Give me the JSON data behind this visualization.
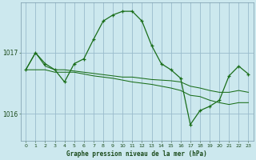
{
  "title": "Graphe pression niveau de la mer (hPa)",
  "bg_color": "#cce8ee",
  "grid_color": "#99bbcc",
  "line_color": "#1a6e1a",
  "marker_color": "#1a6e1a",
  "label_color": "#1a4a1a",
  "ylabel_ticks": [
    1016,
    1017
  ],
  "x_ticks": [
    0,
    1,
    2,
    3,
    4,
    5,
    6,
    7,
    8,
    9,
    10,
    11,
    12,
    13,
    14,
    15,
    16,
    17,
    18,
    19,
    20,
    21,
    22,
    23
  ],
  "xlim": [
    -0.5,
    23.5
  ],
  "ylim": [
    1015.55,
    1017.82
  ],
  "series_main": [
    1016.72,
    1017.0,
    1016.82,
    1016.72,
    1016.52,
    1016.82,
    1016.9,
    1017.22,
    1017.52,
    1017.62,
    1017.68,
    1017.68,
    1017.52,
    1017.12,
    1016.82,
    1016.72,
    1016.58,
    1015.82,
    1016.05,
    1016.12,
    1016.22,
    1016.62,
    1016.78,
    1016.65
  ],
  "series_line2": [
    1016.72,
    1016.72,
    1016.72,
    1016.68,
    1016.68,
    1016.68,
    1016.65,
    1016.62,
    1016.6,
    1016.58,
    1016.55,
    1016.52,
    1016.5,
    1016.48,
    1016.45,
    1016.42,
    1016.38,
    1016.3,
    1016.28,
    1016.22,
    1016.18,
    1016.15,
    1016.18,
    1016.18
  ],
  "series_line3": [
    1016.72,
    1017.0,
    1016.78,
    1016.72,
    1016.72,
    1016.7,
    1016.68,
    1016.66,
    1016.64,
    1016.62,
    1016.6,
    1016.6,
    1016.58,
    1016.56,
    1016.55,
    1016.54,
    1016.52,
    1016.45,
    1016.42,
    1016.38,
    1016.35,
    1016.35,
    1016.38,
    1016.35
  ],
  "figsize": [
    3.2,
    2.0
  ],
  "dpi": 100
}
